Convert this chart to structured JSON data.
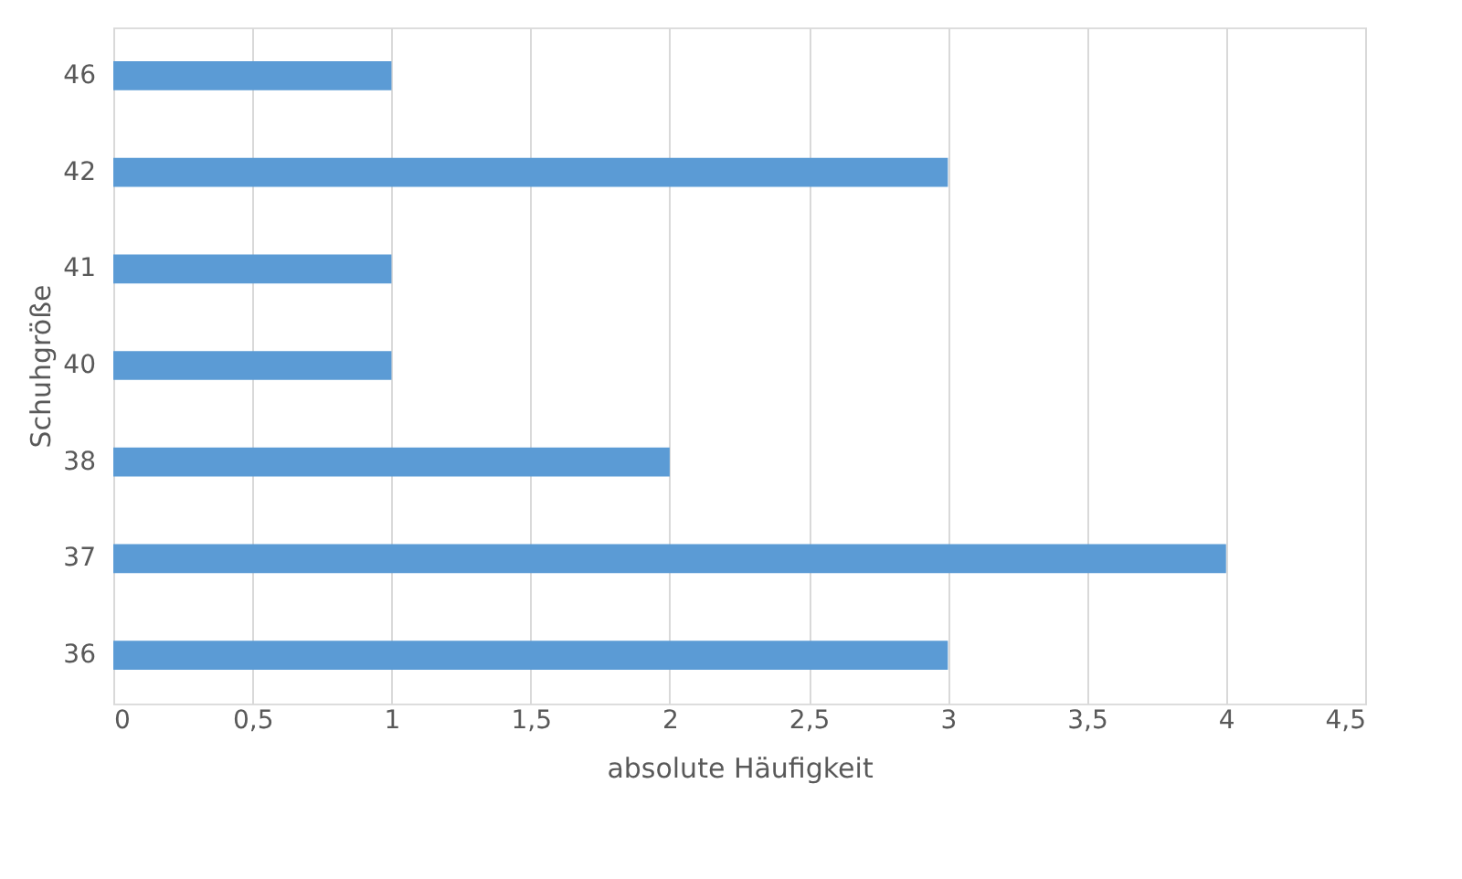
{
  "chart_data": {
    "type": "bar",
    "orientation": "horizontal",
    "xlabel": "absolute Häufigkeit",
    "ylabel": "Schuhgröße",
    "categories": [
      "46",
      "42",
      "41",
      "40",
      "38",
      "37",
      "36"
    ],
    "values": [
      1,
      3,
      1,
      1,
      2,
      4,
      3
    ],
    "color": "#5b9bd5",
    "xlim": [
      0,
      4.5
    ],
    "xticks": [
      0,
      {
        "value": 0.5,
        "label": "0,5"
      },
      1,
      {
        "value": 1.5,
        "label": "1,5"
      },
      2,
      {
        "value": 2.5,
        "label": "2,5"
      },
      3,
      {
        "value": 3.5,
        "label": "3,5"
      },
      4,
      {
        "value": 4.5,
        "label": "4,5"
      }
    ],
    "grid": "x"
  }
}
